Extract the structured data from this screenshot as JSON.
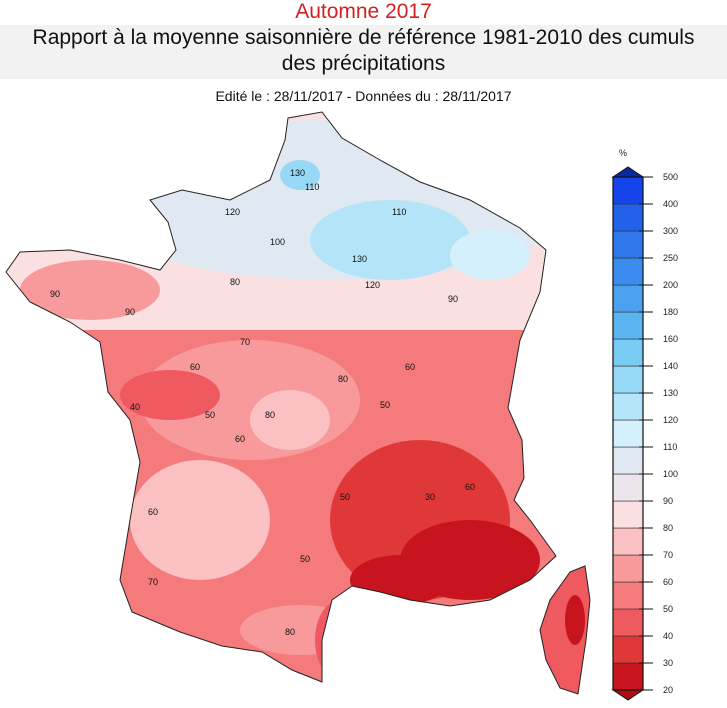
{
  "header": {
    "title": "Automne 2017",
    "subtitle_line1": "Rapport à la moyenne saisonnière de référence 1981-2010 des cumuls",
    "subtitle_line2": "des précipitations",
    "edit_line": "Edité le : 28/11/2017 - Données du : 28/11/2017"
  },
  "legend": {
    "unit": "%",
    "ticks": [
      "20",
      "30",
      "40",
      "50",
      "60",
      "70",
      "80",
      "90",
      "100",
      "110",
      "120",
      "130",
      "140",
      "160",
      "180",
      "200",
      "250",
      "300",
      "400",
      "500"
    ],
    "colors": [
      "#c8141e",
      "#e03838",
      "#ee5a5f",
      "#f47a7c",
      "#f89a9b",
      "#fbc0c2",
      "#fbe0e2",
      "#ece6ec",
      "#e0e8f2",
      "#d4f0fc",
      "#b4e4f8",
      "#96d8f6",
      "#78ccf4",
      "#5ab4f0",
      "#4aa2ee",
      "#3a8cee",
      "#2e78ec",
      "#2262ea",
      "#1444ea"
    ],
    "arrow_low_color": "#b00c14",
    "arrow_high_color": "#0a2aa0"
  },
  "map": {
    "contour_labels": [
      "130",
      "110",
      "120",
      "100",
      "130",
      "120",
      "110",
      "90",
      "80",
      "90",
      "90",
      "70",
      "60",
      "50",
      "40",
      "80",
      "60",
      "80",
      "50",
      "60",
      "70",
      "50",
      "60",
      "80",
      "30",
      "60",
      "50"
    ]
  }
}
